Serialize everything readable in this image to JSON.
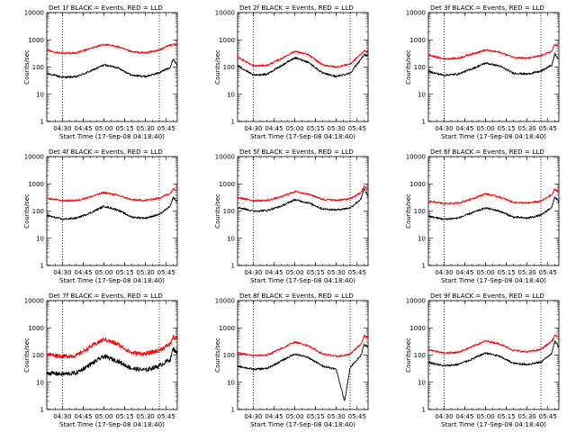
{
  "figure": {
    "x_tick_labels": [
      "04:30",
      "04:45",
      "05:00",
      "05:15",
      "05:30",
      "05:45"
    ],
    "y_tick_labels": [
      "1",
      "10",
      "100",
      "1000",
      "10000"
    ],
    "xlabel": "Start Time (17-Sep-08 04:18:40)",
    "ylabel": "Counts/sec",
    "colors": {
      "events": "#000000",
      "lld": "#ff0000"
    }
  },
  "chart_data": [
    {
      "type": "line",
      "title": "Det 1f BLACK = Events, RED = LLD",
      "xlabel": "Start Time (17-Sep-08 04:18:40)",
      "ylabel": "Counts/sec",
      "x_ticks": [
        "04:30",
        "04:45",
        "05:00",
        "05:15",
        "05:30",
        "05:45"
      ],
      "x_range": [
        "04:18:40",
        "05:53"
      ],
      "y_scale": "log",
      "ylim": [
        1,
        10000
      ],
      "marker_lines_at": [
        "04:30",
        "05:40"
      ],
      "x": [
        "04:18",
        "04:30",
        "04:40",
        "04:50",
        "05:00",
        "05:10",
        "05:20",
        "05:30",
        "05:40",
        "05:48",
        "05:50",
        "05:53"
      ],
      "series": [
        {
          "color": "#000000",
          "values": [
            60,
            42,
            44,
            70,
            120,
            95,
            50,
            45,
            62,
            100,
            200,
            120
          ]
        },
        {
          "color": "#ff0000",
          "values": [
            420,
            320,
            330,
            480,
            680,
            560,
            360,
            330,
            420,
            650,
            700,
            600
          ]
        }
      ]
    },
    {
      "type": "line",
      "title": "Det 2f BLACK = Events, RED = LLD",
      "xlabel": "Start Time (17-Sep-08 04:18:40)",
      "ylabel": "Counts/sec",
      "x_ticks": [
        "04:30",
        "04:45",
        "05:00",
        "05:15",
        "05:30",
        "05:45"
      ],
      "x_range": [
        "04:18:40",
        "05:53"
      ],
      "y_scale": "log",
      "ylim": [
        1,
        10000
      ],
      "marker_lines_at": [
        "04:30",
        "05:40"
      ],
      "x": [
        "04:18",
        "04:30",
        "04:40",
        "04:50",
        "05:00",
        "05:10",
        "05:20",
        "05:30",
        "05:40",
        "05:48",
        "05:50",
        "05:53"
      ],
      "series": [
        {
          "color": "#000000",
          "values": [
            120,
            50,
            55,
            110,
            220,
            150,
            60,
            45,
            60,
            200,
            280,
            250
          ]
        },
        {
          "color": "#ff0000",
          "values": [
            250,
            110,
            115,
            200,
            380,
            280,
            120,
            100,
            130,
            300,
            400,
            350
          ]
        }
      ]
    },
    {
      "type": "line",
      "title": "Det 3f BLACK = Events, RED = LLD",
      "xlabel": "Start Time (17-Sep-08 04:18:40)",
      "ylabel": "Counts/sec",
      "x_ticks": [
        "04:30",
        "04:45",
        "05:00",
        "05:15",
        "05:30",
        "05:45"
      ],
      "x_range": [
        "04:18:40",
        "05:53"
      ],
      "y_scale": "log",
      "ylim": [
        1,
        10000
      ],
      "marker_lines_at": [
        "04:30",
        "05:40"
      ],
      "x": [
        "04:18",
        "04:30",
        "04:40",
        "04:50",
        "05:00",
        "05:10",
        "05:20",
        "05:30",
        "05:40",
        "05:48",
        "05:50",
        "05:53"
      ],
      "series": [
        {
          "color": "#000000",
          "values": [
            70,
            50,
            55,
            85,
            140,
            110,
            60,
            55,
            70,
            120,
            300,
            200
          ]
        },
        {
          "color": "#ff0000",
          "values": [
            280,
            200,
            210,
            300,
            420,
            350,
            230,
            210,
            260,
            380,
            700,
            550
          ]
        }
      ]
    },
    {
      "type": "line",
      "title": "Det 4f BLACK = Events, RED = LLD",
      "xlabel": "Start Time (17-Sep-08 04:18:40)",
      "ylabel": "Counts/sec",
      "x_ticks": [
        "04:30",
        "04:45",
        "05:00",
        "05:15",
        "05:30",
        "05:45"
      ],
      "x_range": [
        "04:18:40",
        "05:53"
      ],
      "y_scale": "log",
      "ylim": [
        1,
        10000
      ],
      "marker_lines_at": [
        "04:30",
        "05:40"
      ],
      "x": [
        "04:18",
        "04:30",
        "04:40",
        "04:50",
        "05:00",
        "05:10",
        "05:20",
        "05:30",
        "05:40",
        "05:48",
        "05:50",
        "05:53"
      ],
      "series": [
        {
          "color": "#000000",
          "values": [
            70,
            50,
            55,
            85,
            150,
            110,
            60,
            55,
            75,
            150,
            320,
            220
          ]
        },
        {
          "color": "#ff0000",
          "values": [
            300,
            240,
            245,
            330,
            480,
            380,
            260,
            245,
            300,
            450,
            650,
            600
          ]
        }
      ]
    },
    {
      "type": "line",
      "title": "Det 5f BLACK = Events, RED = LLD",
      "xlabel": "Start Time (17-Sep-08 04:18:40)",
      "ylabel": "Counts/sec",
      "x_ticks": [
        "04:30",
        "04:45",
        "05:00",
        "05:15",
        "05:30",
        "05:45"
      ],
      "x_range": [
        "04:18:40",
        "05:53"
      ],
      "y_scale": "log",
      "ylim": [
        1,
        10000
      ],
      "marker_lines_at": [
        "04:30",
        "05:40"
      ],
      "x": [
        "04:18",
        "04:30",
        "04:40",
        "04:50",
        "05:00",
        "05:10",
        "05:20",
        "05:30",
        "05:40",
        "05:48",
        "05:50",
        "05:53"
      ],
      "series": [
        {
          "color": "#000000",
          "values": [
            140,
            100,
            105,
            150,
            260,
            200,
            120,
            110,
            130,
            280,
            650,
            350
          ]
        },
        {
          "color": "#ff0000",
          "values": [
            320,
            240,
            245,
            330,
            520,
            420,
            270,
            250,
            280,
            480,
            800,
            600
          ]
        }
      ]
    },
    {
      "type": "line",
      "title": "Det 6f BLACK = Events, RED = LLD",
      "xlabel": "Start Time (17-Sep-08 04:18:40)",
      "ylabel": "Counts/sec",
      "x_ticks": [
        "04:30",
        "04:45",
        "05:00",
        "05:15",
        "05:30",
        "05:45"
      ],
      "x_range": [
        "04:18:40",
        "05:53"
      ],
      "y_scale": "log",
      "ylim": [
        1,
        10000
      ],
      "marker_lines_at": [
        "04:30",
        "05:40"
      ],
      "x": [
        "04:18",
        "04:30",
        "04:40",
        "04:50",
        "05:00",
        "05:10",
        "05:20",
        "05:30",
        "05:40",
        "05:48",
        "05:50",
        "05:53"
      ],
      "series": [
        {
          "color": "#000000",
          "values": [
            65,
            50,
            55,
            85,
            130,
            100,
            60,
            55,
            70,
            140,
            330,
            220
          ]
        },
        {
          "color": "#ff0000",
          "values": [
            230,
            190,
            195,
            280,
            430,
            330,
            210,
            195,
            230,
            400,
            620,
            520
          ]
        }
      ]
    },
    {
      "type": "line",
      "title": "Det 7f BLACK = Events, RED = LLD",
      "xlabel": "Start Time (17-Sep-08 04:18:40)",
      "ylabel": "Counts/sec",
      "x_ticks": [
        "04:30",
        "04:45",
        "05:00",
        "05:15",
        "05:30",
        "05:45"
      ],
      "x_range": [
        "04:18:40",
        "05:53"
      ],
      "y_scale": "log",
      "ylim": [
        1,
        10000
      ],
      "marker_lines_at": [
        "04:30",
        "05:40"
      ],
      "x": [
        "04:18",
        "04:30",
        "04:40",
        "04:50",
        "05:00",
        "05:10",
        "05:20",
        "05:30",
        "05:40",
        "05:48",
        "05:50",
        "05:53"
      ],
      "series": [
        {
          "color": "#000000",
          "values": [
            22,
            20,
            22,
            45,
            90,
            60,
            32,
            28,
            40,
            70,
            170,
            120
          ]
        },
        {
          "color": "#ff0000",
          "values": [
            110,
            90,
            95,
            200,
            380,
            250,
            120,
            110,
            150,
            260,
            450,
            380
          ]
        }
      ]
    },
    {
      "type": "line",
      "title": "Det 8f BLACK = Events, RED = LLD",
      "xlabel": "Start Time (17-Sep-08 04:18:40)",
      "ylabel": "Counts/sec",
      "x_ticks": [
        "04:30",
        "04:45",
        "05:00",
        "05:15",
        "05:30",
        "05:45"
      ],
      "x_range": [
        "04:18:40",
        "05:53"
      ],
      "y_scale": "log",
      "ylim": [
        1,
        10000
      ],
      "marker_lines_at": [
        "04:30",
        "05:40"
      ],
      "x": [
        "04:18",
        "04:30",
        "04:40",
        "04:50",
        "05:00",
        "05:10",
        "05:20",
        "05:30",
        "05:36",
        "05:40",
        "05:48",
        "05:50",
        "05:53"
      ],
      "series": [
        {
          "color": "#000000",
          "values": [
            40,
            30,
            32,
            60,
            110,
            80,
            40,
            30,
            2,
            35,
            100,
            250,
            200
          ]
        },
        {
          "color": "#ff0000",
          "values": [
            120,
            95,
            100,
            170,
            300,
            220,
            110,
            90,
            95,
            110,
            260,
            500,
            450
          ]
        }
      ]
    },
    {
      "type": "line",
      "title": "Det 9f BLACK = Events, RED = LLD",
      "xlabel": "Start Time (17-Sep-08 04:18:40)",
      "ylabel": "Counts/sec",
      "x_ticks": [
        "04:30",
        "04:45",
        "05:00",
        "05:15",
        "05:30",
        "05:45"
      ],
      "x_range": [
        "04:18:40",
        "05:53"
      ],
      "y_scale": "log",
      "ylim": [
        1,
        10000
      ],
      "marker_lines_at": [
        "04:30",
        "05:40"
      ],
      "x": [
        "04:18",
        "04:30",
        "04:40",
        "04:50",
        "05:00",
        "05:10",
        "05:20",
        "05:30",
        "05:40",
        "05:48",
        "05:50",
        "05:53"
      ],
      "series": [
        {
          "color": "#000000",
          "values": [
            55,
            40,
            45,
            70,
            120,
            90,
            50,
            45,
            55,
            120,
            330,
            200
          ]
        },
        {
          "color": "#ff0000",
          "values": [
            160,
            120,
            125,
            200,
            330,
            260,
            150,
            130,
            160,
            330,
            520,
            460
          ]
        }
      ]
    }
  ]
}
